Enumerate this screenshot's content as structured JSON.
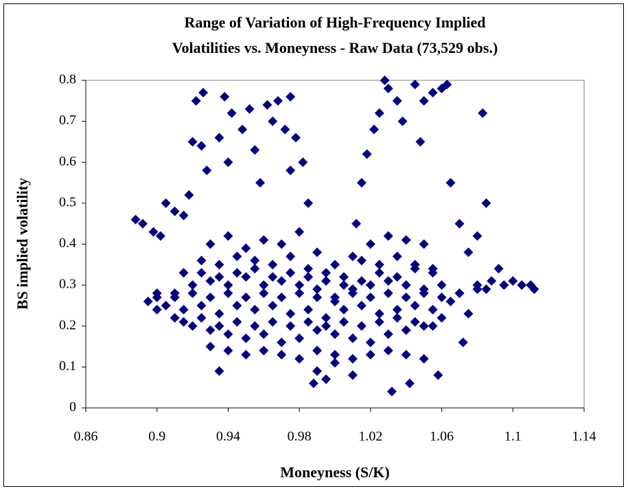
{
  "chart_data": {
    "type": "scatter",
    "title": [
      "Range of Variation of High-Frequency Implied",
      "Volatilities vs. Moneyness - Raw Data (73,529 obs.)"
    ],
    "x_label": "Moneyness (S/K)",
    "y_label": "BS implied volatility",
    "color": "#000080",
    "xlim": [
      0.86,
      1.14
    ],
    "xticks": [
      0.86,
      0.9,
      0.94,
      0.98,
      1.02,
      1.06,
      1.1,
      1.14
    ],
    "ylim": [
      0,
      0.8
    ],
    "yticks": [
      0,
      0.1,
      0.2,
      0.3,
      0.4,
      0.5,
      0.6,
      0.7,
      0.8
    ],
    "grid": false,
    "x": [
      0.91,
      0.92,
      0.93,
      0.94,
      0.95,
      0.96,
      0.97,
      0.98,
      0.99,
      1.0,
      1.01,
      1.02,
      1.03,
      1.04,
      1.05,
      1.06,
      0.905,
      0.915,
      0.925,
      0.935,
      0.945,
      0.955,
      0.965,
      0.975,
      0.985,
      0.995,
      1.005,
      1.015,
      1.025,
      1.035,
      1.045,
      1.055,
      1.065,
      0.91,
      0.92,
      0.93,
      0.94,
      0.95,
      0.96,
      0.97,
      0.98,
      0.99,
      1.0,
      1.01,
      1.02,
      1.03,
      1.04,
      1.05,
      1.06,
      1.07,
      0.915,
      0.925,
      0.935,
      0.945,
      0.955,
      0.965,
      0.975,
      0.985,
      0.995,
      1.005,
      1.015,
      1.025,
      1.035,
      1.045,
      1.055,
      0.915,
      0.925,
      0.935,
      0.945,
      0.955,
      0.965,
      0.975,
      0.985,
      0.995,
      1.005,
      1.015,
      1.025,
      1.035,
      1.045,
      1.055,
      0.9,
      0.91,
      0.92,
      0.93,
      0.94,
      0.95,
      0.96,
      0.97,
      0.98,
      0.99,
      1.0,
      1.01,
      1.02,
      1.03,
      1.04,
      1.05,
      1.06,
      1.07,
      1.08,
      0.925,
      0.935,
      0.945,
      0.955,
      0.965,
      0.975,
      0.985,
      0.995,
      1.005,
      1.015,
      1.025,
      1.035,
      1.045,
      1.055,
      0.93,
      0.94,
      0.95,
      0.96,
      0.97,
      0.98,
      0.99,
      1.0,
      1.01,
      1.02,
      1.03,
      1.04,
      1.05,
      0.93,
      0.94,
      0.95,
      0.96,
      0.97,
      0.98,
      0.99,
      1.0,
      1.01,
      1.02,
      1.03,
      1.04,
      1.05,
      0.888,
      0.892,
      0.898,
      0.9,
      0.902,
      0.905,
      0.91,
      0.915,
      0.918,
      0.92,
      0.922,
      0.926,
      0.925,
      0.928,
      0.935,
      0.935,
      0.938,
      0.94,
      0.942,
      0.948,
      0.952,
      0.955,
      0.958,
      0.962,
      0.965,
      0.968,
      0.972,
      0.975,
      0.978,
      0.975,
      0.982,
      0.985,
      0.988,
      0.99,
      0.995,
      1.0,
      1.01,
      1.012,
      1.015,
      1.018,
      1.022,
      1.025,
      1.028,
      1.03,
      1.032,
      1.035,
      1.038,
      1.042,
      1.045,
      1.048,
      1.05,
      1.055,
      1.058,
      1.06,
      1.063,
      1.065,
      1.07,
      1.072,
      1.075,
      1.08,
      1.083,
      1.085,
      1.088,
      1.092,
      1.095,
      1.1,
      1.105,
      1.11,
      1.112,
      0.895,
      0.9,
      1.075,
      1.08,
      1.085
    ],
    "values": [
      0.22,
      0.2,
      0.19,
      0.18,
      0.17,
      0.18,
      0.16,
      0.17,
      0.19,
      0.18,
      0.17,
      0.16,
      0.18,
      0.19,
      0.2,
      0.22,
      0.25,
      0.24,
      0.25,
      0.23,
      0.25,
      0.24,
      0.25,
      0.23,
      0.24,
      0.22,
      0.24,
      0.25,
      0.23,
      0.24,
      0.25,
      0.24,
      0.26,
      0.28,
      0.3,
      0.31,
      0.3,
      0.32,
      0.3,
      0.31,
      0.3,
      0.29,
      0.27,
      0.29,
      0.3,
      0.31,
      0.3,
      0.29,
      0.3,
      0.28,
      0.33,
      0.36,
      0.35,
      0.37,
      0.36,
      0.35,
      0.37,
      0.34,
      0.31,
      0.32,
      0.36,
      0.35,
      0.37,
      0.35,
      0.34,
      0.21,
      0.22,
      0.2,
      0.21,
      0.2,
      0.21,
      0.2,
      0.21,
      0.2,
      0.21,
      0.2,
      0.21,
      0.22,
      0.21,
      0.2,
      0.27,
      0.27,
      0.28,
      0.27,
      0.28,
      0.27,
      0.28,
      0.27,
      0.28,
      0.27,
      0.26,
      0.28,
      0.27,
      0.28,
      0.27,
      0.28,
      0.27,
      0.28,
      0.29,
      0.33,
      0.32,
      0.33,
      0.34,
      0.32,
      0.33,
      0.32,
      0.33,
      0.3,
      0.31,
      0.33,
      0.32,
      0.34,
      0.33,
      0.4,
      0.42,
      0.39,
      0.41,
      0.4,
      0.43,
      0.38,
      0.35,
      0.37,
      0.4,
      0.42,
      0.41,
      0.4,
      0.15,
      0.14,
      0.13,
      0.14,
      0.13,
      0.12,
      0.14,
      0.13,
      0.12,
      0.13,
      0.14,
      0.13,
      0.12,
      0.46,
      0.45,
      0.43,
      0.28,
      0.42,
      0.5,
      0.48,
      0.47,
      0.52,
      0.65,
      0.75,
      0.77,
      0.64,
      0.58,
      0.09,
      0.66,
      0.76,
      0.6,
      0.72,
      0.68,
      0.73,
      0.63,
      0.55,
      0.74,
      0.7,
      0.75,
      0.68,
      0.76,
      0.66,
      0.58,
      0.6,
      0.5,
      0.06,
      0.09,
      0.07,
      0.11,
      0.08,
      0.45,
      0.55,
      0.62,
      0.68,
      0.72,
      0.8,
      0.78,
      0.04,
      0.75,
      0.7,
      0.06,
      0.79,
      0.65,
      0.75,
      0.77,
      0.08,
      0.78,
      0.79,
      0.55,
      0.45,
      0.16,
      0.38,
      0.42,
      0.72,
      0.5,
      0.31,
      0.34,
      0.3,
      0.31,
      0.3,
      0.3,
      0.29,
      0.26,
      0.24,
      0.23,
      0.3,
      0.29
    ]
  }
}
